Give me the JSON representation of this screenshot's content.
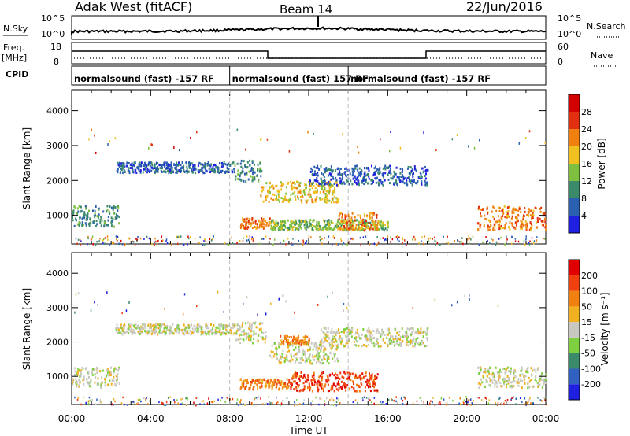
{
  "header": {
    "radar": "Adak West (fitACF)",
    "beam": "Beam 14",
    "date": "22/Jun/2016"
  },
  "strips": {
    "nsky_label": "N.Sky",
    "nsearch_label": "N.Search",
    "nsky_ticks": [
      "10^5",
      "10^0"
    ],
    "nsearch_ticks": [
      "10^5",
      "10^0"
    ],
    "freq_label": "Freq.",
    "freq_unit": "[MHz]",
    "freq_ticks": [
      "18",
      "8"
    ],
    "nave_label": "Nave",
    "nave_ticks": [
      "60",
      "0"
    ],
    "cpid_label": "CPID",
    "cpid_segments": [
      {
        "label": "normalsound (fast) -157 RF",
        "start_hour": 0
      },
      {
        "label": "normalsound (fast) 157 RF",
        "start_hour": 8
      },
      {
        "label": "normalsound (fast) -157 RF",
        "start_hour": 14
      }
    ]
  },
  "chart_data": [
    {
      "type": "heatmap",
      "title": "",
      "ylabel": "Slant Range [km]",
      "xlabel": "",
      "xlim": [
        0,
        24
      ],
      "ylim": [
        180,
        4600
      ],
      "yticks": [
        1000,
        2000,
        3000,
        4000
      ],
      "colorbar": {
        "label": "Power [dB]",
        "ticks": [
          "4",
          "8",
          "12",
          "16",
          "20",
          "24",
          "28"
        ],
        "colors": [
          "#1f1fe0",
          "#2b5fb0",
          "#3b8a6a",
          "#7fbf3f",
          "#f0c020",
          "#f08010",
          "#e03010",
          "#d40000"
        ]
      },
      "bands": [
        {
          "t0": 0.0,
          "t1": 2.4,
          "r0": 700,
          "r1": 1300,
          "level": 2
        },
        {
          "t0": 2.2,
          "t1": 8.2,
          "r0": 2250,
          "r1": 2550,
          "level": 1
        },
        {
          "t0": 8.2,
          "t1": 9.6,
          "r0": 2000,
          "r1": 2600,
          "level": 2
        },
        {
          "t0": 8.5,
          "t1": 10.0,
          "r0": 650,
          "r1": 950,
          "level": 5
        },
        {
          "t0": 9.5,
          "t1": 13.5,
          "r0": 1400,
          "r1": 2000,
          "level": 4
        },
        {
          "t0": 10.0,
          "t1": 16.0,
          "r0": 600,
          "r1": 900,
          "level": 3
        },
        {
          "t0": 13.5,
          "t1": 15.5,
          "r0": 600,
          "r1": 1100,
          "level": 5
        },
        {
          "t0": 12.0,
          "t1": 18.0,
          "r0": 1900,
          "r1": 2450,
          "level": 1
        },
        {
          "t0": 20.5,
          "t1": 24.0,
          "r0": 600,
          "r1": 1300,
          "level": 5
        }
      ]
    },
    {
      "type": "heatmap",
      "title": "",
      "ylabel": "Slant Range [km]",
      "xlabel": "Time UT",
      "xlim": [
        0,
        24
      ],
      "ylim": [
        180,
        4600
      ],
      "yticks": [
        1000,
        2000,
        3000,
        4000
      ],
      "xticks": [
        "00:00",
        "04:00",
        "08:00",
        "12:00",
        "16:00",
        "20:00",
        "00:00"
      ],
      "colorbar": {
        "label": "Velocity [m s⁻¹]",
        "ticks": [
          "200",
          "100",
          "50",
          "15",
          "-15",
          "-50",
          "-100",
          "-200"
        ],
        "colors": [
          "#1f1fe0",
          "#3060c0",
          "#3b8a6a",
          "#7fd040",
          "#c8c8c0",
          "#f0b020",
          "#f08010",
          "#f04010",
          "#e00000"
        ]
      },
      "bands": [
        {
          "t0": 0.0,
          "t1": 2.4,
          "r0": 700,
          "r1": 1300,
          "level": 4
        },
        {
          "t0": 2.2,
          "t1": 8.2,
          "r0": 2250,
          "r1": 2550,
          "level": 4
        },
        {
          "t0": 8.2,
          "t1": 9.8,
          "r0": 2000,
          "r1": 2600,
          "level": 4
        },
        {
          "t0": 8.5,
          "t1": 11.0,
          "r0": 650,
          "r1": 950,
          "level": 6
        },
        {
          "t0": 10.0,
          "t1": 13.5,
          "r0": 1400,
          "r1": 2000,
          "level": 4
        },
        {
          "t0": 10.5,
          "t1": 12.0,
          "r0": 1950,
          "r1": 2200,
          "level": 6
        },
        {
          "t0": 11.0,
          "t1": 15.5,
          "r0": 600,
          "r1": 1150,
          "level": 7
        },
        {
          "t0": 12.5,
          "t1": 18.0,
          "r0": 1900,
          "r1": 2450,
          "level": 4
        },
        {
          "t0": 20.5,
          "t1": 24.0,
          "r0": 700,
          "r1": 1300,
          "level": 4
        }
      ]
    }
  ]
}
